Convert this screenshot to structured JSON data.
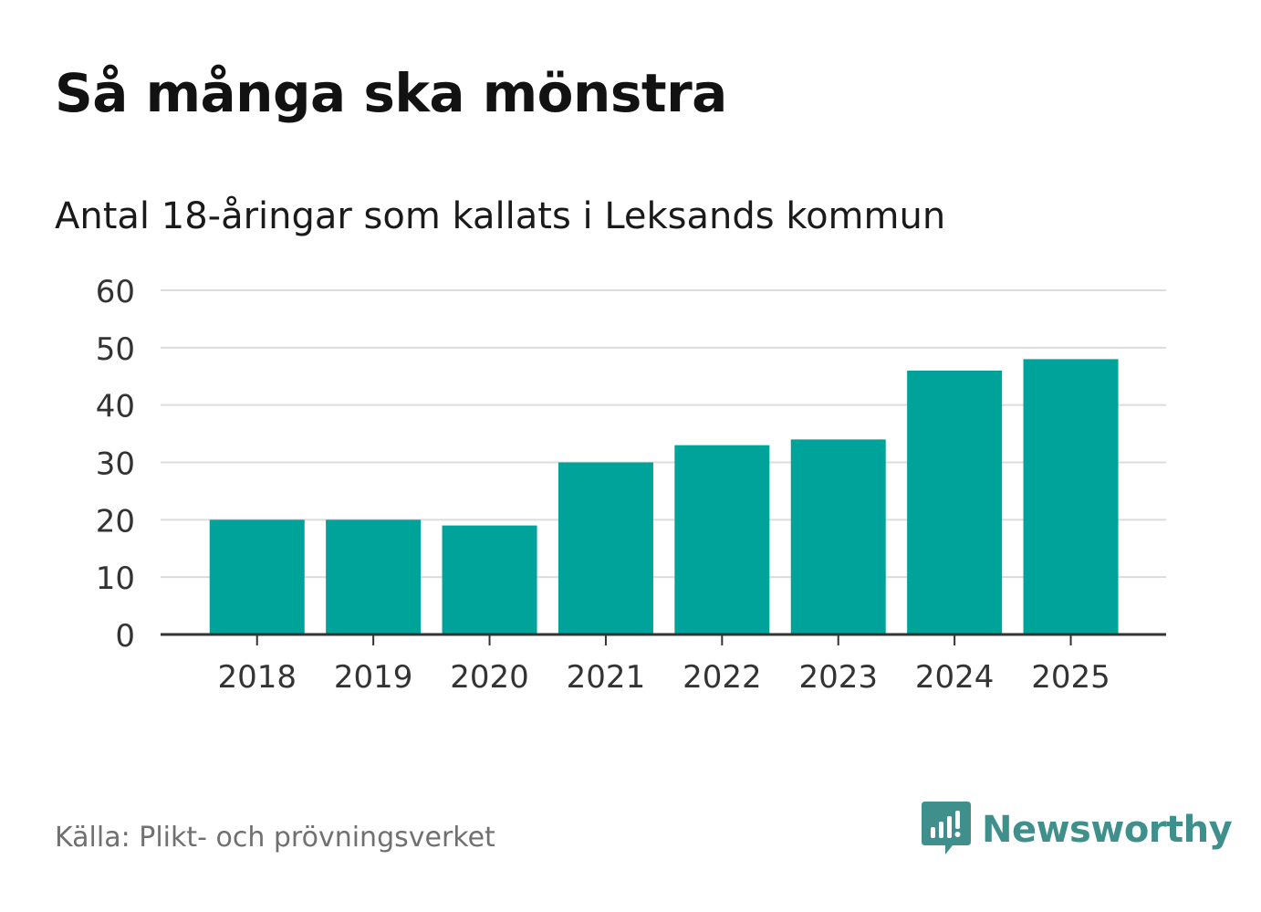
{
  "title": "Så många ska mönstra",
  "subtitle": "Antal 18-åringar som kallats i Leksands kommun",
  "source": "Källa: Plikt- och prövningsverket",
  "brand": {
    "name": "Newsworthy",
    "icon": "newsworthy-logo-icon"
  },
  "colors": {
    "bar": "#00a39a",
    "grid": "#dcdcdc",
    "axis": "#333333",
    "brand": "#3f8f8c"
  },
  "chart_data": {
    "type": "bar",
    "title": "Så många ska mönstra",
    "subtitle": "Antal 18-åringar som kallats i Leksands kommun",
    "categories": [
      "2018",
      "2019",
      "2020",
      "2021",
      "2022",
      "2023",
      "2024",
      "2025"
    ],
    "values": [
      20,
      20,
      19,
      30,
      33,
      34,
      46,
      48
    ],
    "yticks": [
      "0",
      "10",
      "20",
      "30",
      "40",
      "50",
      "60"
    ],
    "ylim": [
      0,
      60
    ],
    "xlabel": "",
    "ylabel": "",
    "grid": true,
    "legend": "none"
  }
}
